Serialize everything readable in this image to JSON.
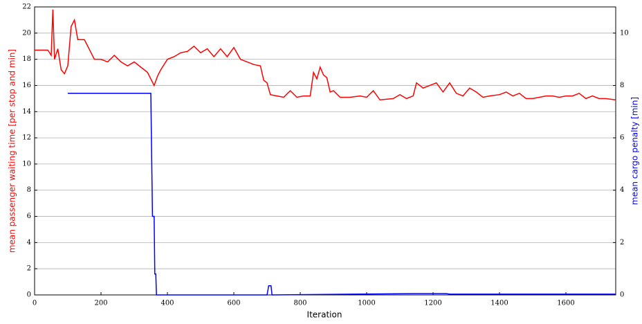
{
  "chart_data": {
    "type": "line",
    "xlabel": "Iteration",
    "ylabel": "mean passenger waiting time [per stop and min]",
    "y2label": "mean cargo penalty [min]",
    "xlim": [
      0,
      1750
    ],
    "xticks": [
      0,
      200,
      400,
      600,
      800,
      1000,
      1200,
      1400,
      1600
    ],
    "ylim": [
      0,
      22
    ],
    "yticks": [
      0,
      2,
      4,
      6,
      8,
      10,
      12,
      14,
      16,
      18,
      20,
      22
    ],
    "y2lim": [
      0,
      11
    ],
    "y2ticks": [
      0,
      2,
      4,
      6,
      8,
      10
    ],
    "grid": true,
    "series": [
      {
        "name": "mean passenger waiting time",
        "color": "#ff0000",
        "x": [
          0,
          40,
          50,
          55,
          60,
          70,
          80,
          90,
          100,
          110,
          120,
          130,
          150,
          170,
          180,
          200,
          220,
          240,
          260,
          280,
          300,
          320,
          340,
          360,
          370,
          380,
          400,
          420,
          440,
          460,
          480,
          500,
          520,
          540,
          560,
          580,
          600,
          620,
          640,
          660,
          680,
          690,
          700,
          710,
          730,
          750,
          770,
          790,
          810,
          830,
          840,
          850,
          860,
          870,
          880,
          890,
          900,
          920,
          950,
          980,
          1000,
          1020,
          1040,
          1080,
          1100,
          1120,
          1140,
          1150,
          1170,
          1190,
          1210,
          1230,
          1250,
          1270,
          1290,
          1310,
          1330,
          1350,
          1370,
          1400,
          1420,
          1440,
          1460,
          1480,
          1500,
          1520,
          1540,
          1560,
          1580,
          1600,
          1620,
          1640,
          1660,
          1680,
          1700,
          1720,
          1750
        ],
        "values": [
          18.7,
          18.7,
          18.3,
          21.8,
          18,
          18.8,
          17.2,
          16.9,
          17.5,
          20.5,
          21,
          19.5,
          19.5,
          18.5,
          18,
          18,
          17.8,
          18.3,
          17.8,
          17.5,
          17.8,
          17.4,
          17,
          16,
          16.7,
          17.2,
          18,
          18.2,
          18.5,
          18.6,
          19,
          18.5,
          18.8,
          18.2,
          18.8,
          18.2,
          18.9,
          18,
          17.8,
          17.6,
          17.5,
          16.4,
          16.2,
          15.3,
          15.2,
          15.1,
          15.6,
          15.1,
          15.2,
          15.2,
          17,
          16.5,
          17.4,
          16.8,
          16.6,
          15.5,
          15.6,
          15.1,
          15.1,
          15.2,
          15.1,
          15.6,
          14.9,
          15,
          15.3,
          15,
          15.2,
          16.2,
          15.8,
          16,
          16.2,
          15.5,
          16.2,
          15.4,
          15.2,
          15.8,
          15.5,
          15.1,
          15.2,
          15.3,
          15.5,
          15.2,
          15.4,
          15,
          15,
          15.1,
          15.2,
          15.2,
          15.1,
          15.2,
          15.2,
          15.4,
          15,
          15.2,
          15,
          15,
          14.9
        ]
      },
      {
        "name": "mean cargo penalty",
        "color": "#0000ff",
        "axis": "y2",
        "x": [
          100,
          350,
          355,
          360,
          362,
          365,
          367,
          700,
          705,
          712,
          715,
          1140,
          1240,
          1250,
          1750
        ],
        "values": [
          7.7,
          7.7,
          3,
          3,
          0.8,
          0.8,
          0,
          0,
          0.35,
          0.35,
          0,
          0.05,
          0.05,
          0.03,
          0.03
        ]
      }
    ]
  }
}
